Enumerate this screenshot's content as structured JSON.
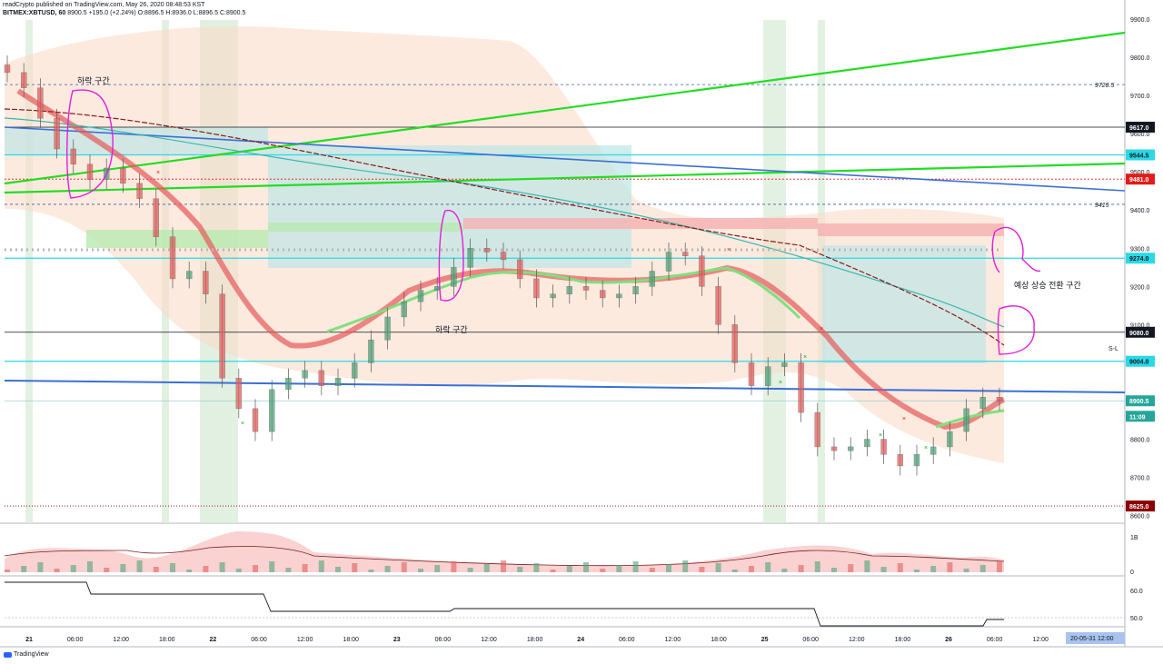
{
  "header": {
    "publisher_line": "readCrypto published on TradingView.com, May 26, 2020 08:48:53 KST",
    "symbol": "BITMEX:XBTUSD, 60",
    "last": "8900.5",
    "change": "+195.0 (+2.24%)",
    "ohlc": "O:8896.5 H:8936.0 L:8896.5 C:8900.5"
  },
  "footer": {
    "brand": "TradingView"
  },
  "colors": {
    "green_line": "#22dd22",
    "blue_line": "#3b6fd6",
    "cyan_line": "#29d9e6",
    "red_label": "#e31b1b",
    "dark_label": "#131722",
    "magenta_anno": "#e21fd8",
    "candle_up": "#4fa37a",
    "candle_down": "#e0605e",
    "cloud": "#fbd9c4",
    "teal_zone": "#bfe6e6"
  },
  "chart_data": {
    "type": "candlestick",
    "symbol": "BITMEX:XBTUSD",
    "interval": "60",
    "ylim": [
      8580,
      9950
    ],
    "price_ticks": [
      8600,
      8700,
      8800,
      8900,
      9000,
      9100,
      9200,
      9300,
      9400,
      9500,
      9600,
      9700,
      9800,
      9900
    ],
    "time_labels": [
      "21",
      "06:00",
      "12:00",
      "18:00",
      "22",
      "06:00",
      "12:00",
      "18:00",
      "23",
      "06:00",
      "12:00",
      "18:00",
      "24",
      "06:00",
      "12:00",
      "18:00",
      "25",
      "06:00",
      "12:00",
      "18:00",
      "26",
      "06:00",
      "12:00"
    ],
    "time_cursor_label": "20-05-31   12:00",
    "price_labels": [
      {
        "text": "9728.5",
        "value": 9728.5,
        "style": "plain"
      },
      {
        "text": "9617.0",
        "value": 9617.0,
        "style": "dark"
      },
      {
        "text": "9544.5",
        "value": 9544.5,
        "style": "cyan"
      },
      {
        "text": "9481.0",
        "value": 9481.0,
        "style": "red"
      },
      {
        "text": "9415",
        "value": 9415,
        "style": "plain"
      },
      {
        "text": "9274.0",
        "value": 9274.0,
        "style": "cyan"
      },
      {
        "text": "9080.0",
        "value": 9080.0,
        "style": "dark"
      },
      {
        "text": "9004.0",
        "value": 9004.0,
        "style": "cyan"
      },
      {
        "text": "8900.5",
        "value": 8900.5,
        "style": "teal"
      },
      {
        "text": "11:09",
        "value": 8860,
        "style": "teal"
      },
      {
        "text": "8625.0",
        "value": 8625.0,
        "style": "darkred"
      }
    ],
    "sl_label": "S-L",
    "annotations": [
      {
        "text": "하락 구간"
      },
      {
        "text": "하락 구간"
      },
      {
        "text": "예상 상승 전환 구간"
      }
    ],
    "indicator1_ticks": [
      "1B",
      "0"
    ],
    "indicator2_ticks": [
      "60.0",
      "50.0"
    ],
    "close_series": [
      9760,
      9720,
      9640,
      9560,
      9520,
      9480,
      9510,
      9470,
      9430,
      9330,
      9220,
      9240,
      9180,
      8960,
      8880,
      8820,
      8930,
      8960,
      8980,
      8940,
      8960,
      9000,
      9060,
      9120,
      9160,
      9190,
      9200,
      9250,
      9300,
      9290,
      9270,
      9220,
      9170,
      9180,
      9200,
      9190,
      9170,
      9180,
      9200,
      9240,
      9290,
      9280,
      9200,
      9100,
      9000,
      8940,
      8990,
      9000,
      8870,
      8780,
      8770,
      8780,
      8800,
      8760,
      8730,
      8760,
      8780,
      8820,
      8880,
      8910,
      8900
    ]
  }
}
